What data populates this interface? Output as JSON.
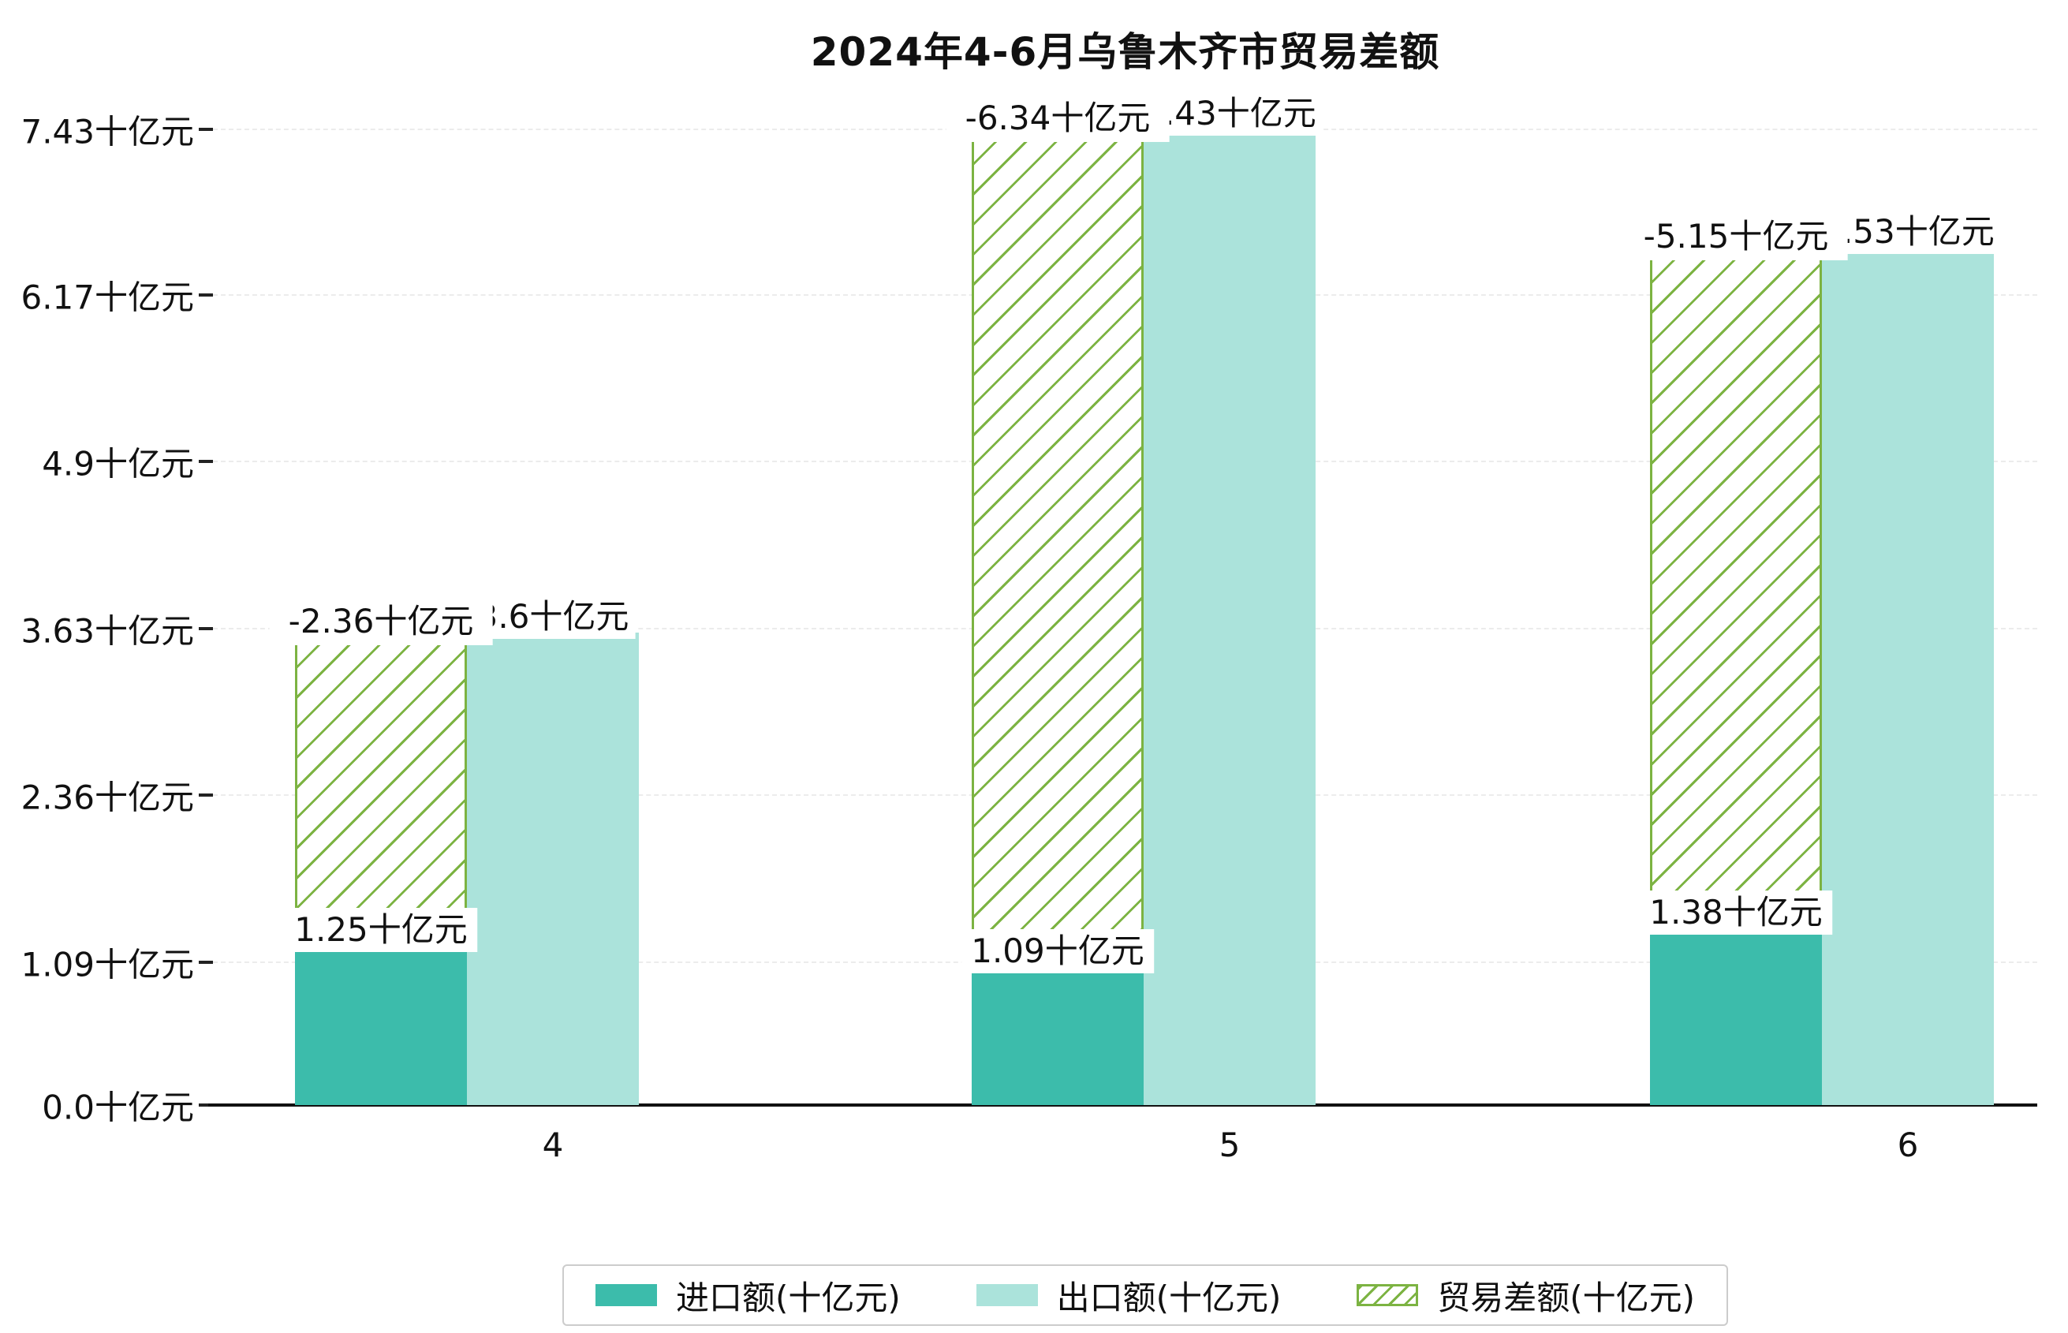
{
  "title": "2024年4-6月乌鲁木齐市贸易差额",
  "colors": {
    "import_bar": "#3cbcab",
    "export_bar": "#abe3db",
    "balance_hatch": "#7cb342",
    "axis": "#111111",
    "grid": "#ececec",
    "label_background": "#ffffff",
    "legend_border": "#cccccc"
  },
  "chart_data": {
    "type": "bar",
    "title": "2024年4-6月乌鲁木齐市贸易差额",
    "categories": [
      "4",
      "5",
      "6"
    ],
    "series": [
      {
        "name": "进口额(十亿元)",
        "values": [
          1.25,
          1.09,
          1.38
        ],
        "bar_labels": [
          "1.25十亿元",
          "1.09十亿元",
          "1.38十亿元"
        ],
        "color": "#3cbcab",
        "style": "solid"
      },
      {
        "name": "出口额(十亿元)",
        "values": [
          3.6,
          7.43,
          6.53
        ],
        "bar_labels": [
          "3.6十亿元",
          "7.43十亿元",
          "6.53十亿元"
        ],
        "color": "#abe3db",
        "style": "solid"
      },
      {
        "name": "贸易差额(十亿元)",
        "values": [
          -2.36,
          -6.34,
          -5.15
        ],
        "bar_labels": [
          "-2.36十亿元",
          "-6.34十亿元",
          "-5.15十亿元"
        ],
        "color": "#7cb342",
        "style": "hatched",
        "render_note": "floating hatched bar spanning from the import value up to the export value in the same column as the import bar"
      }
    ],
    "y_ticks": {
      "values": [
        0,
        1.09,
        2.36,
        3.63,
        4.9,
        6.17,
        7.43
      ],
      "labels": [
        "0.0十亿元",
        "1.09十亿元",
        "2.36十亿元",
        "3.63十亿元",
        "4.9十亿元",
        "6.17十亿元",
        "7.43十亿元"
      ]
    },
    "ylim": [
      0,
      7.43
    ],
    "xlabel": "",
    "ylabel": "",
    "grid": true,
    "legend_position": "bottom-center"
  }
}
